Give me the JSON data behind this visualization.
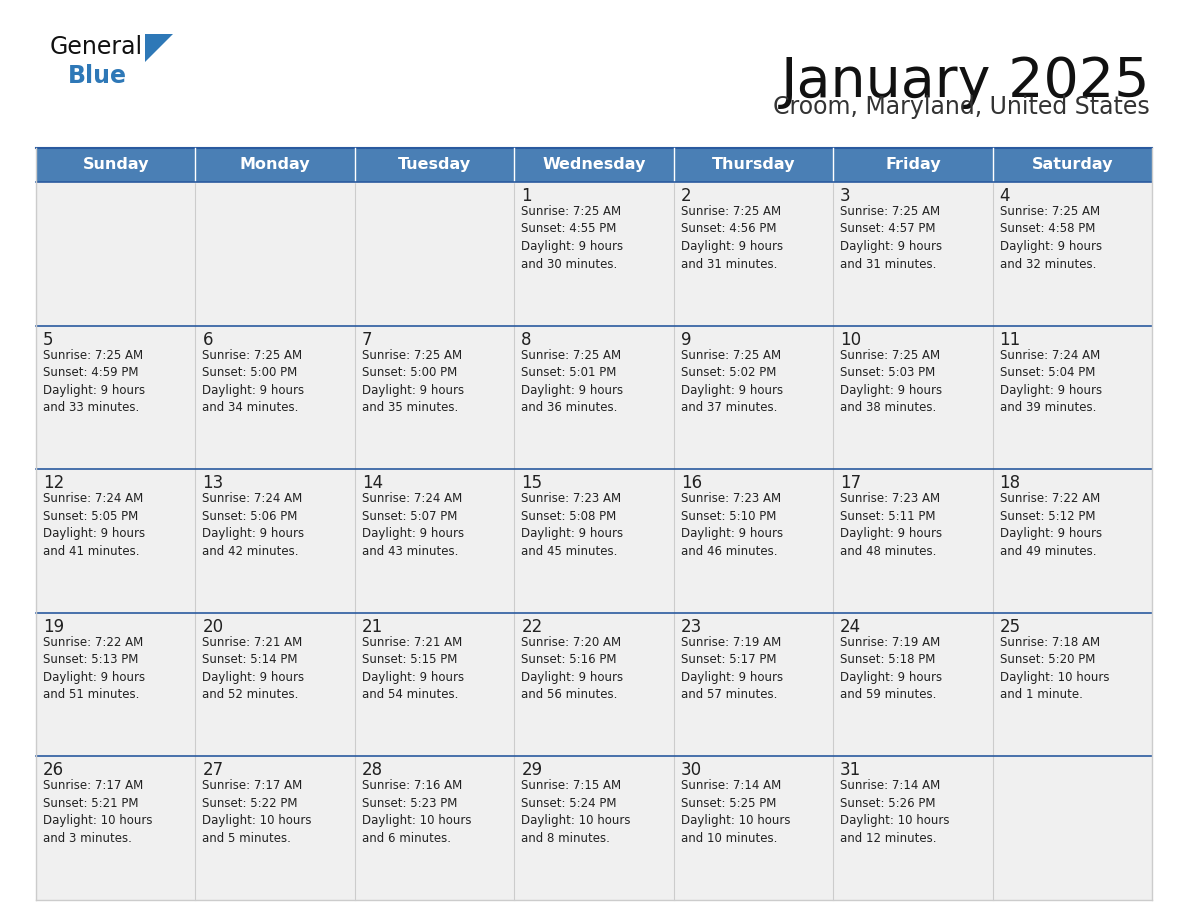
{
  "title": "January 2025",
  "subtitle": "Croom, Maryland, United States",
  "days_of_week": [
    "Sunday",
    "Monday",
    "Tuesday",
    "Wednesday",
    "Thursday",
    "Friday",
    "Saturday"
  ],
  "header_bg": "#4a7fb5",
  "header_text": "#ffffff",
  "row_bg": "#f0f0f0",
  "cell_text": "#222222",
  "day_num_text": "#222222",
  "row_separator": "#2a5a9f",
  "col_separator": "#cccccc",
  "outer_border": "#cccccc",
  "title_color": "#111111",
  "subtitle_color": "#333333",
  "generalblue_black": "#111111",
  "generalblue_blue": "#2e78b7",
  "logo_triangle_color": "#2e78b7",
  "weeks": [
    {
      "days": [
        {
          "date": null,
          "sunrise": null,
          "sunset": null,
          "daylight": null
        },
        {
          "date": null,
          "sunrise": null,
          "sunset": null,
          "daylight": null
        },
        {
          "date": null,
          "sunrise": null,
          "sunset": null,
          "daylight": null
        },
        {
          "date": 1,
          "sunrise": "7:25 AM",
          "sunset": "4:55 PM",
          "daylight": "9 hours\nand 30 minutes."
        },
        {
          "date": 2,
          "sunrise": "7:25 AM",
          "sunset": "4:56 PM",
          "daylight": "9 hours\nand 31 minutes."
        },
        {
          "date": 3,
          "sunrise": "7:25 AM",
          "sunset": "4:57 PM",
          "daylight": "9 hours\nand 31 minutes."
        },
        {
          "date": 4,
          "sunrise": "7:25 AM",
          "sunset": "4:58 PM",
          "daylight": "9 hours\nand 32 minutes."
        }
      ]
    },
    {
      "days": [
        {
          "date": 5,
          "sunrise": "7:25 AM",
          "sunset": "4:59 PM",
          "daylight": "9 hours\nand 33 minutes."
        },
        {
          "date": 6,
          "sunrise": "7:25 AM",
          "sunset": "5:00 PM",
          "daylight": "9 hours\nand 34 minutes."
        },
        {
          "date": 7,
          "sunrise": "7:25 AM",
          "sunset": "5:00 PM",
          "daylight": "9 hours\nand 35 minutes."
        },
        {
          "date": 8,
          "sunrise": "7:25 AM",
          "sunset": "5:01 PM",
          "daylight": "9 hours\nand 36 minutes."
        },
        {
          "date": 9,
          "sunrise": "7:25 AM",
          "sunset": "5:02 PM",
          "daylight": "9 hours\nand 37 minutes."
        },
        {
          "date": 10,
          "sunrise": "7:25 AM",
          "sunset": "5:03 PM",
          "daylight": "9 hours\nand 38 minutes."
        },
        {
          "date": 11,
          "sunrise": "7:24 AM",
          "sunset": "5:04 PM",
          "daylight": "9 hours\nand 39 minutes."
        }
      ]
    },
    {
      "days": [
        {
          "date": 12,
          "sunrise": "7:24 AM",
          "sunset": "5:05 PM",
          "daylight": "9 hours\nand 41 minutes."
        },
        {
          "date": 13,
          "sunrise": "7:24 AM",
          "sunset": "5:06 PM",
          "daylight": "9 hours\nand 42 minutes."
        },
        {
          "date": 14,
          "sunrise": "7:24 AM",
          "sunset": "5:07 PM",
          "daylight": "9 hours\nand 43 minutes."
        },
        {
          "date": 15,
          "sunrise": "7:23 AM",
          "sunset": "5:08 PM",
          "daylight": "9 hours\nand 45 minutes."
        },
        {
          "date": 16,
          "sunrise": "7:23 AM",
          "sunset": "5:10 PM",
          "daylight": "9 hours\nand 46 minutes."
        },
        {
          "date": 17,
          "sunrise": "7:23 AM",
          "sunset": "5:11 PM",
          "daylight": "9 hours\nand 48 minutes."
        },
        {
          "date": 18,
          "sunrise": "7:22 AM",
          "sunset": "5:12 PM",
          "daylight": "9 hours\nand 49 minutes."
        }
      ]
    },
    {
      "days": [
        {
          "date": 19,
          "sunrise": "7:22 AM",
          "sunset": "5:13 PM",
          "daylight": "9 hours\nand 51 minutes."
        },
        {
          "date": 20,
          "sunrise": "7:21 AM",
          "sunset": "5:14 PM",
          "daylight": "9 hours\nand 52 minutes."
        },
        {
          "date": 21,
          "sunrise": "7:21 AM",
          "sunset": "5:15 PM",
          "daylight": "9 hours\nand 54 minutes."
        },
        {
          "date": 22,
          "sunrise": "7:20 AM",
          "sunset": "5:16 PM",
          "daylight": "9 hours\nand 56 minutes."
        },
        {
          "date": 23,
          "sunrise": "7:19 AM",
          "sunset": "5:17 PM",
          "daylight": "9 hours\nand 57 minutes."
        },
        {
          "date": 24,
          "sunrise": "7:19 AM",
          "sunset": "5:18 PM",
          "daylight": "9 hours\nand 59 minutes."
        },
        {
          "date": 25,
          "sunrise": "7:18 AM",
          "sunset": "5:20 PM",
          "daylight": "10 hours\nand 1 minute."
        }
      ]
    },
    {
      "days": [
        {
          "date": 26,
          "sunrise": "7:17 AM",
          "sunset": "5:21 PM",
          "daylight": "10 hours\nand 3 minutes."
        },
        {
          "date": 27,
          "sunrise": "7:17 AM",
          "sunset": "5:22 PM",
          "daylight": "10 hours\nand 5 minutes."
        },
        {
          "date": 28,
          "sunrise": "7:16 AM",
          "sunset": "5:23 PM",
          "daylight": "10 hours\nand 6 minutes."
        },
        {
          "date": 29,
          "sunrise": "7:15 AM",
          "sunset": "5:24 PM",
          "daylight": "10 hours\nand 8 minutes."
        },
        {
          "date": 30,
          "sunrise": "7:14 AM",
          "sunset": "5:25 PM",
          "daylight": "10 hours\nand 10 minutes."
        },
        {
          "date": 31,
          "sunrise": "7:14 AM",
          "sunset": "5:26 PM",
          "daylight": "10 hours\nand 12 minutes."
        },
        {
          "date": null,
          "sunrise": null,
          "sunset": null,
          "daylight": null
        }
      ]
    }
  ]
}
